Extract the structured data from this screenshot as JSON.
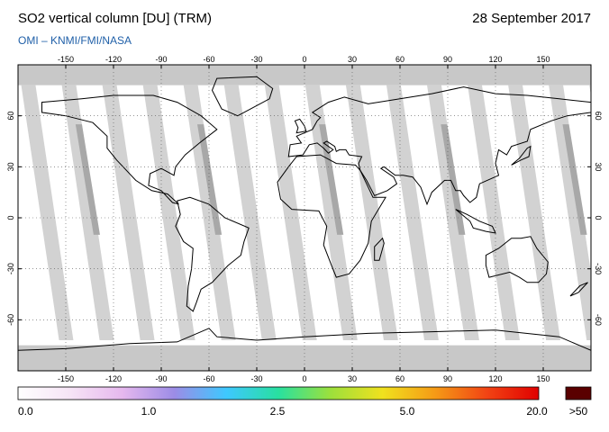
{
  "header": {
    "title": "SO2 vertical column [DU] (TRM)",
    "date": "28 September 2017",
    "credit": "OMI  –  KNMI/FMI/NASA"
  },
  "map": {
    "lon_ticks": [
      "-150",
      "-120",
      "-90",
      "-60",
      "-30",
      "0",
      "30",
      "60",
      "90",
      "120",
      "150"
    ],
    "lat_ticks": [
      "60",
      "30",
      "0",
      "-30",
      "-60"
    ],
    "colors": {
      "ocean": "#ffffff",
      "land": "#ffffff",
      "swath_gap_light": "#d2d2d2",
      "swath_gap_dark": "#a8a8a8",
      "polar_gray": "#c8c8c8",
      "coast": "#000000",
      "grid": "#555555"
    }
  },
  "colorbar": {
    "labels": [
      "0.0",
      "1.0",
      "2.5",
      "5.0",
      "20.0"
    ],
    "over_label": ">50",
    "stops": [
      "#ffffff",
      "#f6e4f6",
      "#e6b8ee",
      "#9c8ce6",
      "#3ec8ff",
      "#28e0a0",
      "#9ce03c",
      "#f0e11e",
      "#f59b16",
      "#f24414",
      "#e00000"
    ],
    "over_color": "#5a0000"
  }
}
